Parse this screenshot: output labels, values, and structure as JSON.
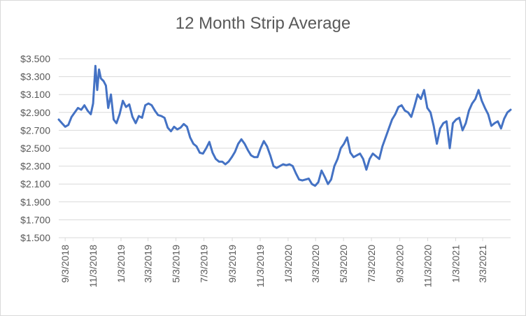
{
  "chart_data": {
    "type": "line",
    "title": "12 Month Strip Average",
    "xlabel": "",
    "ylabel": "",
    "ylim": [
      1.5,
      3.5
    ],
    "y_ticks": [
      "$1.500",
      "$1.700",
      "$1.900",
      "$2.100",
      "$2.300",
      "$2.500",
      "$2.700",
      "$2.900",
      "$3.100",
      "$3.300",
      "$3.500"
    ],
    "x_ticks": [
      "9/3/2018",
      "11/3/2018",
      "1/3/2019",
      "3/3/2019",
      "5/3/2019",
      "7/3/2019",
      "9/3/2019",
      "11/3/2019",
      "1/3/2020",
      "3/3/2020",
      "5/3/2020",
      "7/3/2020",
      "9/3/2020",
      "11/3/2020",
      "1/3/2021",
      "3/3/2021"
    ],
    "grid": "horizontal",
    "legend": "none",
    "line_color": "#4472c4",
    "series": [
      {
        "values": [
          [
            "2018-08-20",
            2.82
          ],
          [
            "2018-08-27",
            2.78
          ],
          [
            "2018-09-03",
            2.74
          ],
          [
            "2018-09-10",
            2.76
          ],
          [
            "2018-09-17",
            2.85
          ],
          [
            "2018-09-24",
            2.9
          ],
          [
            "2018-10-01",
            2.95
          ],
          [
            "2018-10-08",
            2.93
          ],
          [
            "2018-10-15",
            2.98
          ],
          [
            "2018-10-22",
            2.92
          ],
          [
            "2018-10-29",
            2.88
          ],
          [
            "2018-11-03",
            3.0
          ],
          [
            "2018-11-08",
            3.42
          ],
          [
            "2018-11-12",
            3.15
          ],
          [
            "2018-11-16",
            3.38
          ],
          [
            "2018-11-20",
            3.28
          ],
          [
            "2018-11-26",
            3.25
          ],
          [
            "2018-12-01",
            3.2
          ],
          [
            "2018-12-06",
            2.95
          ],
          [
            "2018-12-12",
            3.1
          ],
          [
            "2018-12-18",
            2.82
          ],
          [
            "2018-12-24",
            2.78
          ],
          [
            "2018-12-31",
            2.88
          ],
          [
            "2019-01-07",
            3.03
          ],
          [
            "2019-01-14",
            2.96
          ],
          [
            "2019-01-21",
            2.99
          ],
          [
            "2019-01-28",
            2.85
          ],
          [
            "2019-02-04",
            2.78
          ],
          [
            "2019-02-11",
            2.86
          ],
          [
            "2019-02-18",
            2.84
          ],
          [
            "2019-02-25",
            2.98
          ],
          [
            "2019-03-04",
            3.0
          ],
          [
            "2019-03-11",
            2.98
          ],
          [
            "2019-03-18",
            2.92
          ],
          [
            "2019-03-25",
            2.87
          ],
          [
            "2019-04-01",
            2.86
          ],
          [
            "2019-04-08",
            2.84
          ],
          [
            "2019-04-15",
            2.73
          ],
          [
            "2019-04-22",
            2.69
          ],
          [
            "2019-04-29",
            2.74
          ],
          [
            "2019-05-06",
            2.71
          ],
          [
            "2019-05-13",
            2.73
          ],
          [
            "2019-05-20",
            2.77
          ],
          [
            "2019-05-27",
            2.74
          ],
          [
            "2019-06-03",
            2.62
          ],
          [
            "2019-06-10",
            2.55
          ],
          [
            "2019-06-17",
            2.52
          ],
          [
            "2019-06-24",
            2.45
          ],
          [
            "2019-07-01",
            2.44
          ],
          [
            "2019-07-08",
            2.5
          ],
          [
            "2019-07-15",
            2.57
          ],
          [
            "2019-07-22",
            2.45
          ],
          [
            "2019-07-29",
            2.38
          ],
          [
            "2019-08-05",
            2.35
          ],
          [
            "2019-08-12",
            2.35
          ],
          [
            "2019-08-19",
            2.32
          ],
          [
            "2019-08-26",
            2.35
          ],
          [
            "2019-09-02",
            2.4
          ],
          [
            "2019-09-09",
            2.46
          ],
          [
            "2019-09-16",
            2.55
          ],
          [
            "2019-09-23",
            2.6
          ],
          [
            "2019-09-30",
            2.55
          ],
          [
            "2019-10-07",
            2.48
          ],
          [
            "2019-10-14",
            2.42
          ],
          [
            "2019-10-21",
            2.4
          ],
          [
            "2019-10-28",
            2.4
          ],
          [
            "2019-11-04",
            2.5
          ],
          [
            "2019-11-11",
            2.58
          ],
          [
            "2019-11-18",
            2.52
          ],
          [
            "2019-11-25",
            2.42
          ],
          [
            "2019-12-02",
            2.3
          ],
          [
            "2019-12-09",
            2.28
          ],
          [
            "2019-12-16",
            2.3
          ],
          [
            "2019-12-23",
            2.32
          ],
          [
            "2019-12-30",
            2.31
          ],
          [
            "2020-01-06",
            2.32
          ],
          [
            "2020-01-13",
            2.3
          ],
          [
            "2020-01-20",
            2.22
          ],
          [
            "2020-01-27",
            2.15
          ],
          [
            "2020-02-03",
            2.14
          ],
          [
            "2020-02-10",
            2.15
          ],
          [
            "2020-02-17",
            2.16
          ],
          [
            "2020-02-24",
            2.1
          ],
          [
            "2020-03-02",
            2.08
          ],
          [
            "2020-03-09",
            2.12
          ],
          [
            "2020-03-16",
            2.25
          ],
          [
            "2020-03-23",
            2.18
          ],
          [
            "2020-03-30",
            2.1
          ],
          [
            "2020-04-06",
            2.15
          ],
          [
            "2020-04-13",
            2.3
          ],
          [
            "2020-04-20",
            2.38
          ],
          [
            "2020-04-27",
            2.5
          ],
          [
            "2020-05-04",
            2.55
          ],
          [
            "2020-05-11",
            2.62
          ],
          [
            "2020-05-18",
            2.45
          ],
          [
            "2020-05-25",
            2.4
          ],
          [
            "2020-06-01",
            2.42
          ],
          [
            "2020-06-08",
            2.44
          ],
          [
            "2020-06-15",
            2.38
          ],
          [
            "2020-06-22",
            2.26
          ],
          [
            "2020-06-29",
            2.38
          ],
          [
            "2020-07-06",
            2.44
          ],
          [
            "2020-07-13",
            2.41
          ],
          [
            "2020-07-20",
            2.38
          ],
          [
            "2020-07-27",
            2.52
          ],
          [
            "2020-08-03",
            2.62
          ],
          [
            "2020-08-10",
            2.72
          ],
          [
            "2020-08-17",
            2.82
          ],
          [
            "2020-08-24",
            2.88
          ],
          [
            "2020-08-31",
            2.96
          ],
          [
            "2020-09-07",
            2.98
          ],
          [
            "2020-09-14",
            2.92
          ],
          [
            "2020-09-21",
            2.9
          ],
          [
            "2020-09-28",
            2.85
          ],
          [
            "2020-10-05",
            2.97
          ],
          [
            "2020-10-12",
            3.1
          ],
          [
            "2020-10-19",
            3.05
          ],
          [
            "2020-10-26",
            3.15
          ],
          [
            "2020-11-02",
            2.95
          ],
          [
            "2020-11-09",
            2.9
          ],
          [
            "2020-11-16",
            2.75
          ],
          [
            "2020-11-23",
            2.55
          ],
          [
            "2020-11-30",
            2.72
          ],
          [
            "2020-12-07",
            2.78
          ],
          [
            "2020-12-14",
            2.8
          ],
          [
            "2020-12-21",
            2.5
          ],
          [
            "2020-12-28",
            2.78
          ],
          [
            "2021-01-04",
            2.82
          ],
          [
            "2021-01-11",
            2.84
          ],
          [
            "2021-01-18",
            2.7
          ],
          [
            "2021-01-25",
            2.78
          ],
          [
            "2021-02-01",
            2.92
          ],
          [
            "2021-02-08",
            3.0
          ],
          [
            "2021-02-15",
            3.05
          ],
          [
            "2021-02-22",
            3.15
          ],
          [
            "2021-03-01",
            3.03
          ],
          [
            "2021-03-08",
            2.95
          ],
          [
            "2021-03-15",
            2.88
          ],
          [
            "2021-03-22",
            2.75
          ],
          [
            "2021-03-29",
            2.78
          ],
          [
            "2021-04-05",
            2.8
          ],
          [
            "2021-04-12",
            2.72
          ],
          [
            "2021-04-19",
            2.83
          ],
          [
            "2021-04-26",
            2.9
          ],
          [
            "2021-05-03",
            2.93
          ]
        ]
      }
    ]
  }
}
